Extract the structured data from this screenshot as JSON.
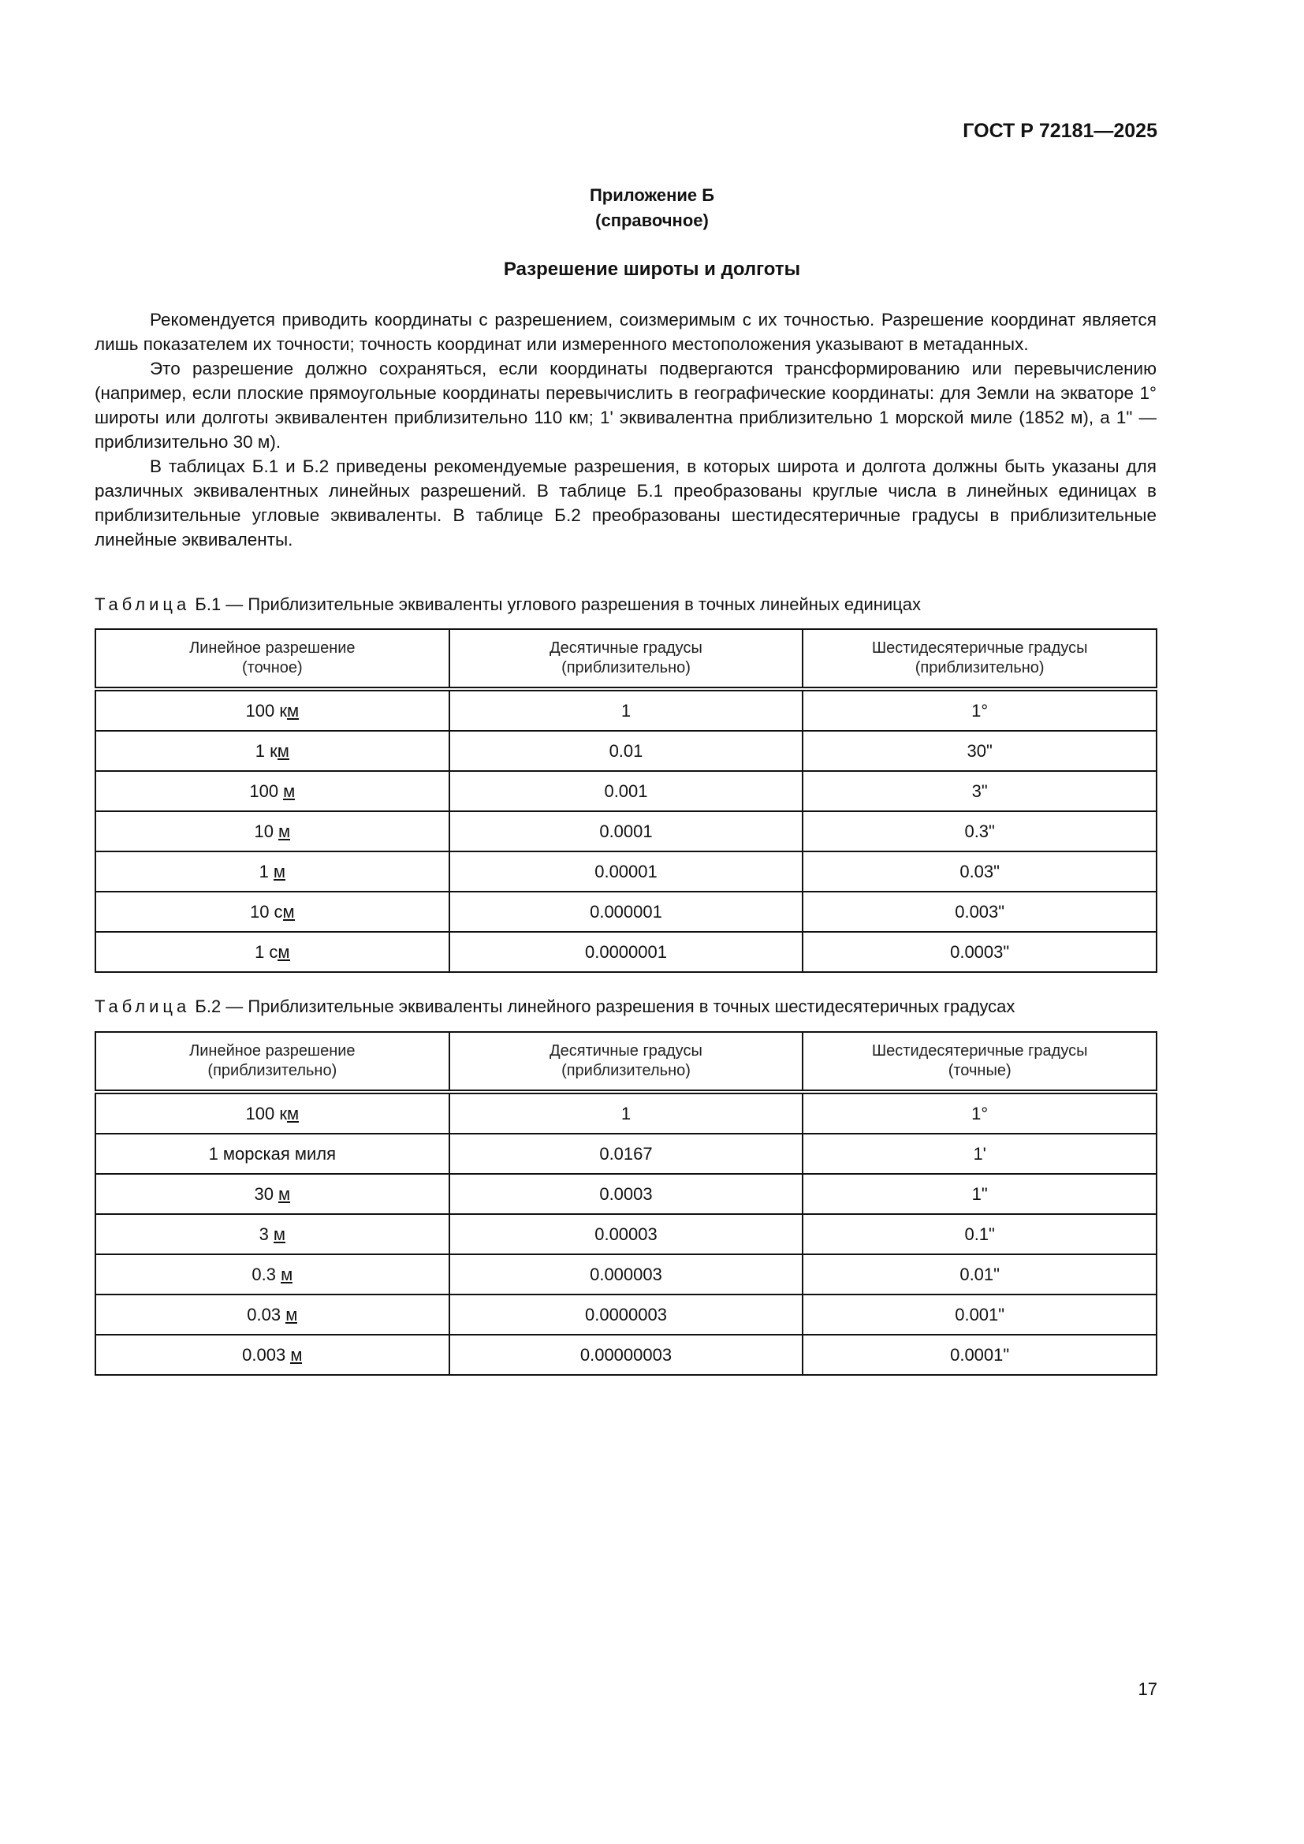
{
  "header": {
    "doc_id": "ГОСТ Р 72181—2025"
  },
  "appendix": {
    "line1": "Приложение Б",
    "line2": "(справочное)"
  },
  "title": "Разрешение широты и долготы",
  "paragraphs": [
    "Рекомендуется приводить координаты с разрешением, соизмеримым с их точностью. Разрешение координат является лишь показателем их точности; точность координат или измеренного местоположения указывают в метаданных.",
    "Это разрешение должно сохраняться, если координаты подвергаются трансформированию или перевычислению (например, если плоские прямоугольные координаты перевычислить в географические координаты: для Земли на экваторе 1° широты или долготы эквивалентен приблизительно 110 км; 1' эквивалентна приблизительно 1 морской миле (1852 м), а 1\" — приблизительно 30 м).",
    "В таблицах Б.1 и Б.2 приведены рекомендуемые разрешения, в которых широта и долгота должны быть указаны для различных эквивалентных линейных разрешений. В таблице Б.1 преобразованы круглые числа в линейных единицах в приблизительные угловые эквиваленты. В таблице Б.2 преобразованы шестидесятеричные градусы в приблизительные линейные эквиваленты."
  ],
  "tables": [
    {
      "label": "Таблица",
      "caption": "Б.1 — Приблизительные эквиваленты углового разрешения в точных линейных единицах",
      "headers": [
        [
          "Линейное разрешение",
          "(точное)"
        ],
        [
          "Десятичные градусы",
          "(приблизительно)"
        ],
        [
          "Шестидесятеричные градусы",
          "(приблизительно)"
        ]
      ],
      "rows": [
        [
          "100 км",
          "1",
          "1°"
        ],
        [
          "1 км",
          "0.01",
          "30\""
        ],
        [
          "100 м",
          "0.001",
          "3\""
        ],
        [
          "10 м",
          "0.0001",
          "0.3\""
        ],
        [
          "1 м",
          "0.00001",
          "0.03\""
        ],
        [
          "10 см",
          "0.000001",
          "0.003\""
        ],
        [
          "1 см",
          "0.0000001",
          "0.0003\""
        ]
      ]
    },
    {
      "label": "Таблица",
      "caption": "Б.2 — Приблизительные эквиваленты линейного разрешения в точных шестидесятеричных градусах",
      "headers": [
        [
          "Линейное разрешение",
          "(приблизительно)"
        ],
        [
          "Десятичные градусы",
          "(приблизительно)"
        ],
        [
          "Шестидесятеричные градусы",
          "(точные)"
        ]
      ],
      "rows": [
        [
          "100 км",
          "1",
          "1°"
        ],
        [
          "1 морская миля",
          "0.0167",
          "1'"
        ],
        [
          "30 м",
          "0.0003",
          "1\""
        ],
        [
          "3 м",
          "0.00003",
          "0.1\""
        ],
        [
          "0.3 м",
          "0.000003",
          "0.01\""
        ],
        [
          "0.03 м",
          "0.0000003",
          "0.001\""
        ],
        [
          "0.003 м",
          "0.00000003",
          "0.0001\""
        ]
      ]
    }
  ],
  "page_number": "17"
}
